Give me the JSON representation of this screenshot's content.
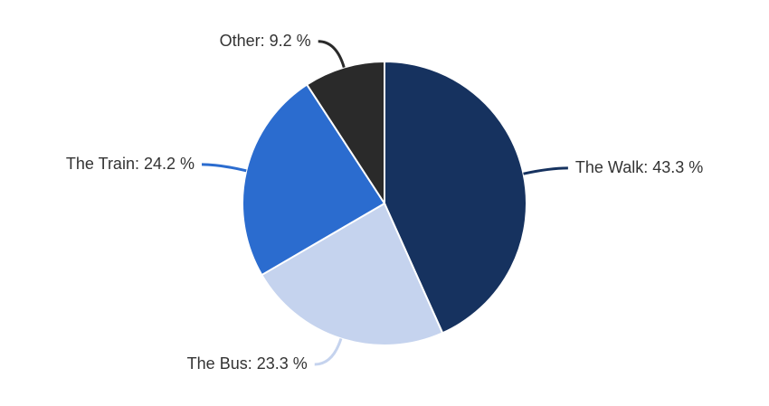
{
  "chart_data": {
    "type": "pie",
    "categories": [
      "The Walk",
      "The Bus",
      "The Train",
      "Other"
    ],
    "values": [
      43.3,
      23.3,
      24.2,
      9.2
    ],
    "value_labels": [
      ": 43.3 %",
      ": 23.3 %",
      ": 24.2 %",
      ": 9.2 %"
    ],
    "colors": [
      "#16325f",
      "#c5d3ee",
      "#2b6ccf",
      "#2a2a2a"
    ]
  }
}
